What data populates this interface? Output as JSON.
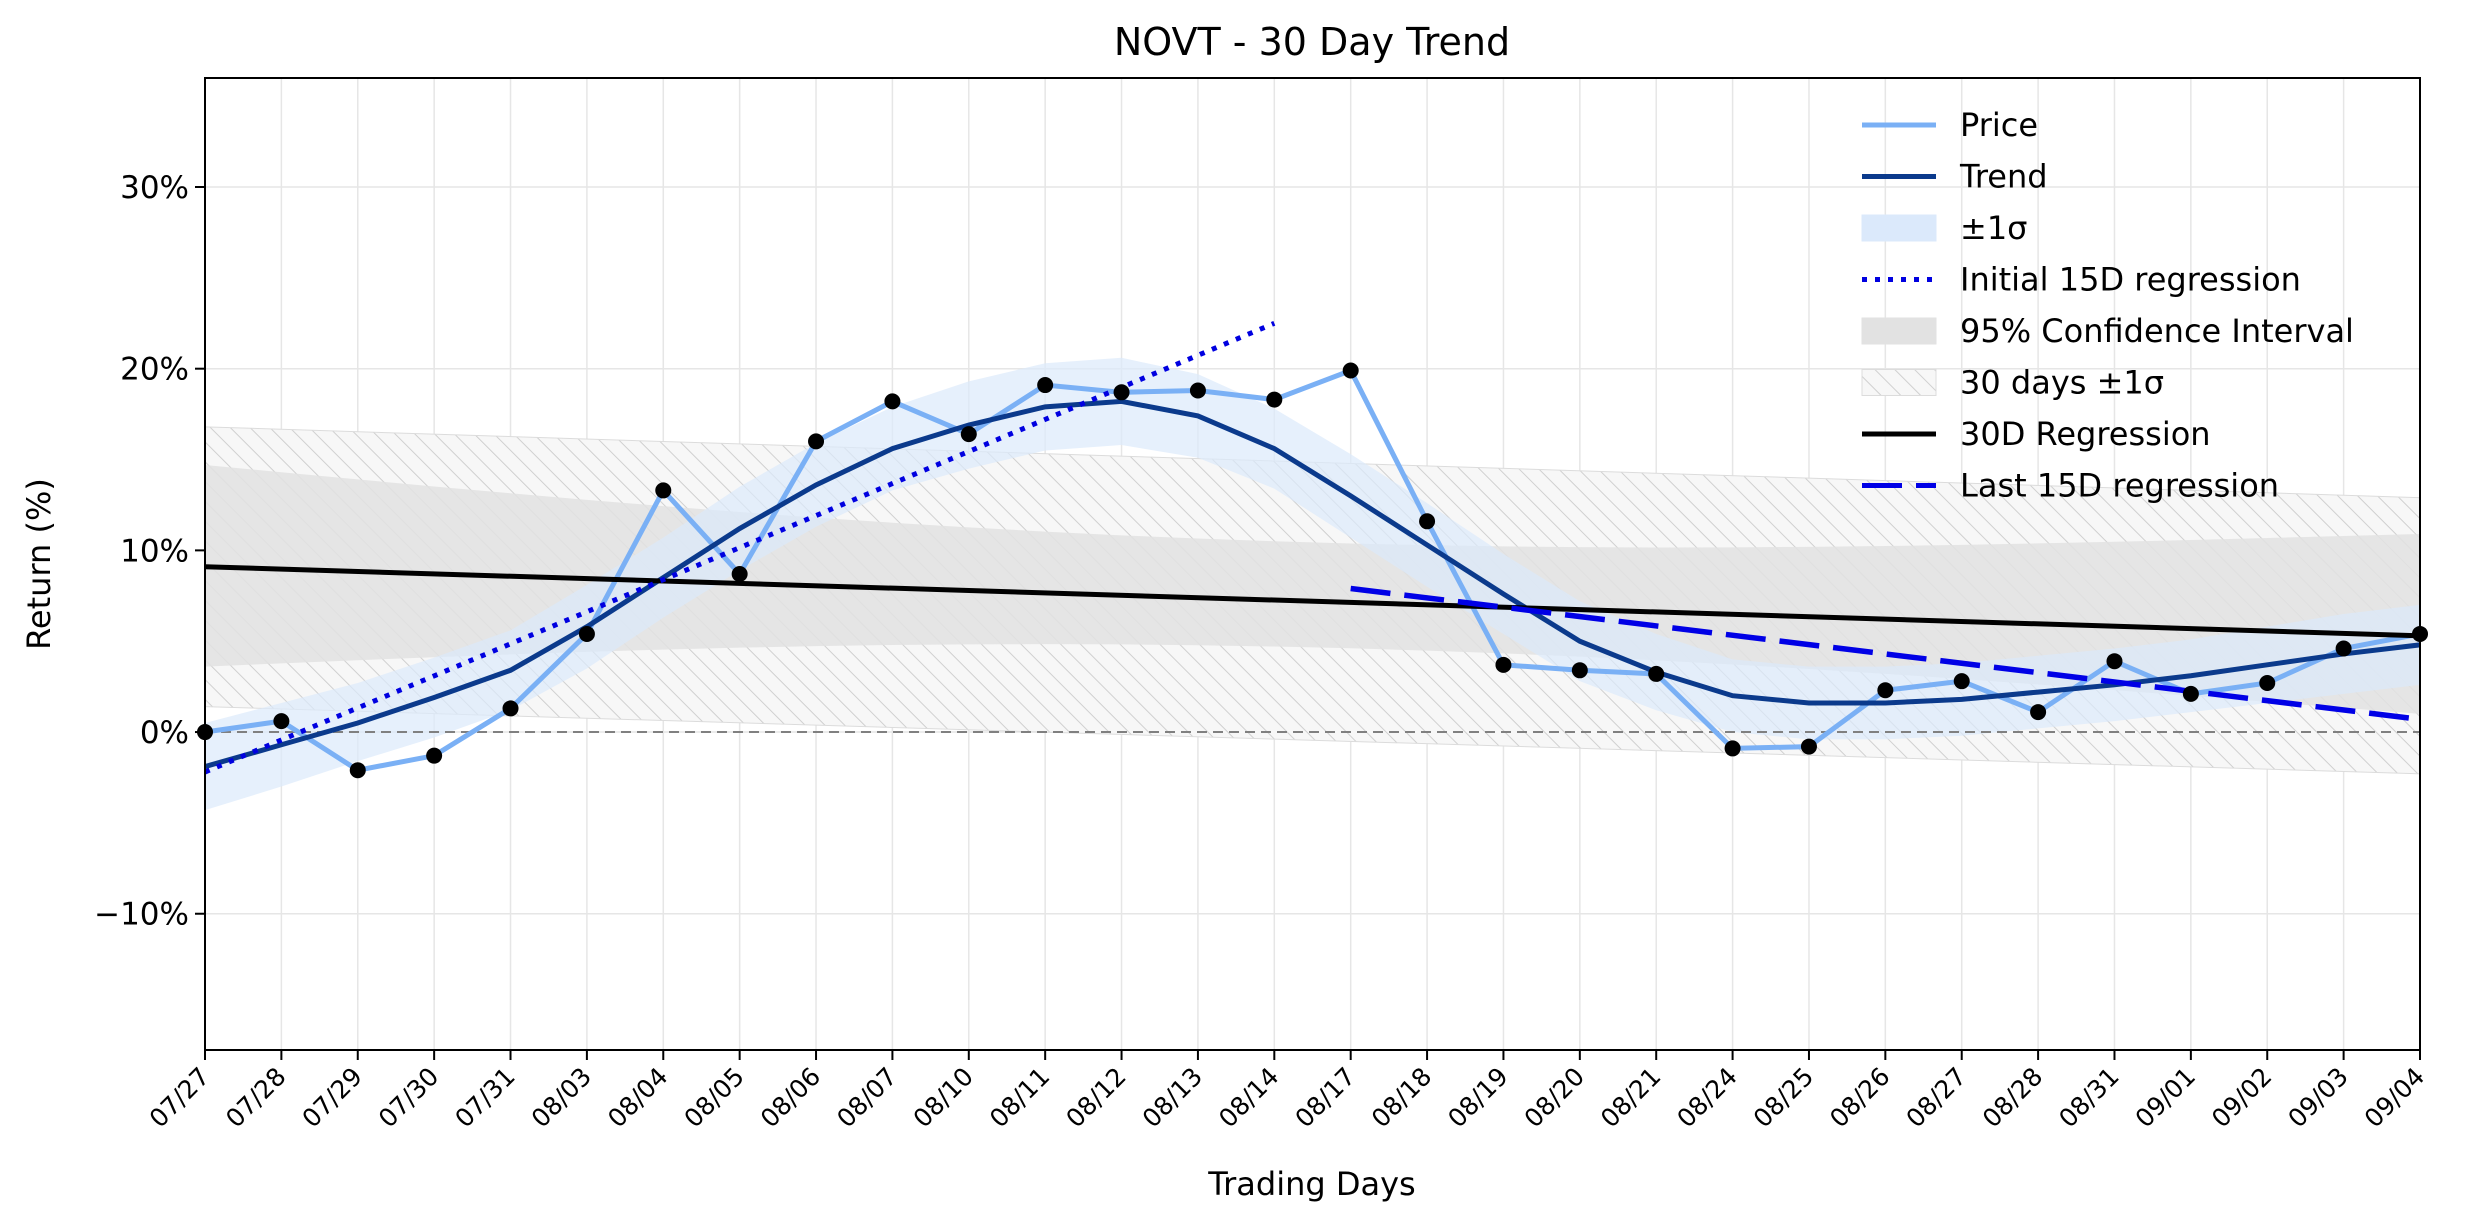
{
  "chart_data": {
    "type": "line",
    "title": "NOVT - 30 Day Trend",
    "xlabel": "Trading Days",
    "ylabel": "Return (%)",
    "ylim": [
      -17.5,
      36
    ],
    "y_ticks": [
      -10,
      0,
      10,
      20,
      30
    ],
    "y_tick_labels": [
      "−10%",
      "0%",
      "10%",
      "20%",
      "30%"
    ],
    "grid": true,
    "legend_position": "top-right",
    "categories": [
      "07/27",
      "07/28",
      "07/29",
      "07/30",
      "07/31",
      "08/03",
      "08/04",
      "08/05",
      "08/06",
      "08/07",
      "08/10",
      "08/11",
      "08/12",
      "08/13",
      "08/14",
      "08/17",
      "08/18",
      "08/19",
      "08/20",
      "08/21",
      "08/24",
      "08/25",
      "08/26",
      "08/27",
      "08/28",
      "08/31",
      "09/01",
      "09/02",
      "09/03",
      "09/04"
    ],
    "series": [
      {
        "name": "Price",
        "kind": "line+markers",
        "color": "#7ab0f5",
        "values": [
          0.0,
          0.6,
          -2.1,
          -1.3,
          1.3,
          5.4,
          13.3,
          8.7,
          16.0,
          18.2,
          16.4,
          19.1,
          18.7,
          18.8,
          18.3,
          19.9,
          11.6,
          3.7,
          3.4,
          3.2,
          -0.9,
          -0.8,
          2.3,
          2.8,
          1.1,
          3.9,
          2.1,
          2.7,
          4.6,
          5.4
        ]
      },
      {
        "name": "Trend",
        "kind": "line",
        "color": "#0b3a8c",
        "values": [
          -1.9,
          -0.7,
          0.5,
          1.9,
          3.4,
          5.8,
          8.5,
          11.2,
          13.6,
          15.6,
          16.9,
          17.9,
          18.2,
          17.4,
          15.6,
          13.0,
          10.3,
          7.6,
          5.0,
          3.3,
          2.0,
          1.6,
          1.6,
          1.8,
          2.2,
          2.6,
          3.1,
          3.7,
          4.3,
          4.8
        ]
      },
      {
        "name": "±1σ",
        "kind": "band",
        "color": "#dbe9fb",
        "lower": [
          -4.3,
          -3.0,
          -1.6,
          -0.3,
          1.2,
          3.5,
          6.3,
          8.9,
          11.3,
          13.3,
          14.5,
          15.5,
          15.8,
          15.1,
          13.4,
          10.7,
          8.0,
          5.4,
          2.8,
          1.2,
          0.0,
          -0.4,
          -0.4,
          -0.2,
          0.2,
          0.6,
          1.1,
          1.6,
          2.1,
          2.6
        ],
        "upper": [
          0.5,
          1.6,
          2.7,
          4.1,
          5.6,
          8.1,
          10.7,
          13.5,
          15.9,
          17.9,
          19.3,
          20.3,
          20.6,
          19.7,
          17.8,
          15.3,
          12.6,
          9.8,
          7.2,
          5.4,
          4.0,
          3.6,
          3.6,
          3.8,
          4.2,
          4.6,
          5.1,
          5.8,
          6.5,
          7.0
        ]
      },
      {
        "name": "Initial 15D regression",
        "kind": "dotted",
        "color": "#0000e0",
        "x_range": [
          "07/27",
          "08/14"
        ],
        "values_at_ends": [
          -2.2,
          22.5
        ]
      },
      {
        "name": "95% Confidence Interval",
        "kind": "band",
        "color": "#e2e2e2",
        "lower_at_ends": [
          3.6,
          1.0
        ],
        "upper_at_ends": [
          14.7,
          10.9
        ]
      },
      {
        "name": "30 days ±1σ",
        "kind": "hatched-band",
        "color": "#d6d6d6",
        "lower_at_ends": [
          1.4,
          -2.3
        ],
        "upper_at_ends": [
          16.8,
          12.9
        ]
      },
      {
        "name": "30D Regression",
        "kind": "line",
        "color": "#000000",
        "x_range": [
          "07/27",
          "09/04"
        ],
        "values_at_ends": [
          9.1,
          5.3
        ]
      },
      {
        "name": "Last 15D regression",
        "kind": "dashed",
        "color": "#0000e6",
        "x_range": [
          "08/17",
          "09/04"
        ],
        "values_at_ends": [
          7.9,
          0.7
        ]
      }
    ],
    "reference_line": {
      "y": 0,
      "style": "dashed",
      "color": "#808080"
    }
  }
}
